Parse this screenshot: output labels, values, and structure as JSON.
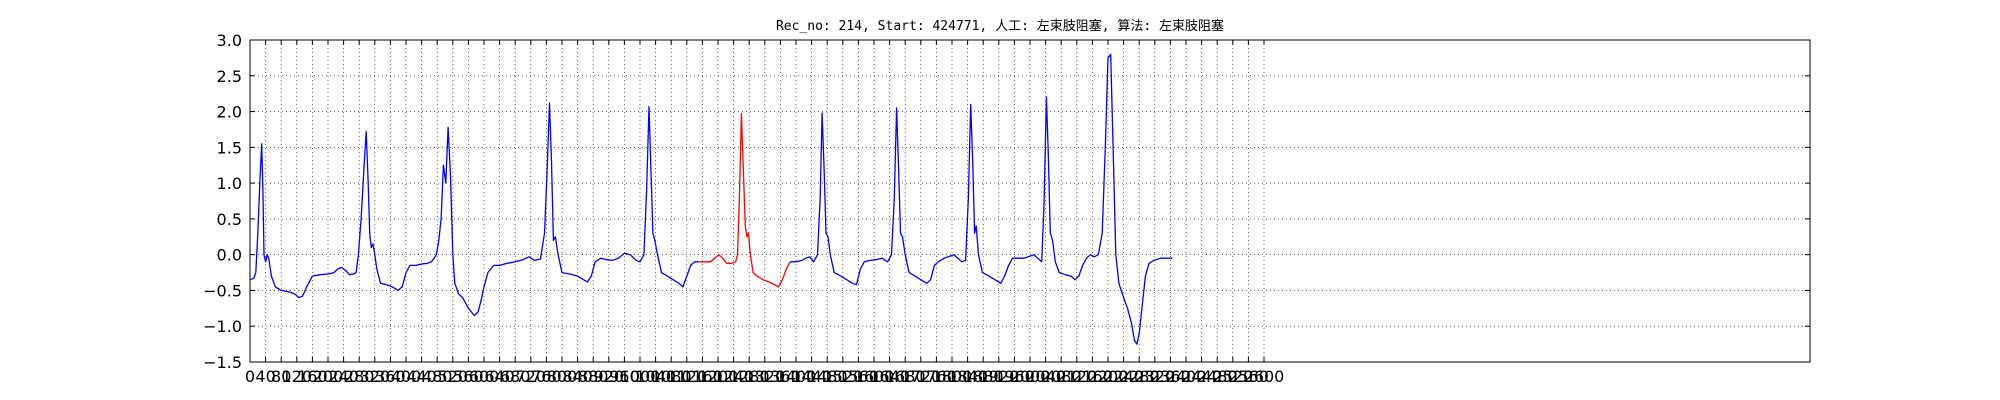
{
  "chart_data": {
    "type": "line",
    "title": "Rec_no: 214, Start: 424771, 人工: 左束肢阻塞, 算法: 左束肢阻塞",
    "xlabel": "",
    "ylabel": "",
    "xlim": [
      0,
      4000
    ],
    "ylim": [
      -1.5,
      3.0
    ],
    "grid": true,
    "grid_style": "dotted",
    "x_ticks": [
      0,
      40,
      80,
      120,
      160,
      200,
      240,
      280,
      320,
      360,
      400,
      440,
      480,
      520,
      560,
      600,
      640,
      680,
      720,
      760,
      800,
      840,
      880,
      920,
      960,
      1000,
      1040,
      1080,
      1120,
      1160,
      1200,
      1240,
      1280,
      1320,
      1360,
      1400,
      1440,
      1480,
      1520,
      1560,
      1600,
      1640,
      1680,
      1720,
      1760,
      1800,
      1840,
      1880,
      1920,
      1960,
      2000,
      2040,
      2080,
      2120,
      2160,
      2200,
      2240,
      2280,
      2320,
      2360,
      2400,
      2440,
      2480,
      2520,
      2560,
      2600
    ],
    "x_tick_labels": [
      "0",
      "40",
      "80",
      "120",
      "160",
      "200",
      "240",
      "280",
      "320",
      "360",
      "400",
      "440",
      "480",
      "520",
      "560",
      "600",
      "640",
      "680",
      "720",
      "760",
      "800",
      "840",
      "880",
      "920",
      "960",
      "1000",
      "1040",
      "1080",
      "1120",
      "1160",
      "1200",
      "1240",
      "1280",
      "1320",
      "1360",
      "1400",
      "1440",
      "1480",
      "1520",
      "1560",
      "1600",
      "1640",
      "1680",
      "1720",
      "1760",
      "1800",
      "1840",
      "1880",
      "1920",
      "1960",
      "2000",
      "2040",
      "2080",
      "2120",
      "2160",
      "2200",
      "2240",
      "2280",
      "2320",
      "2360",
      "2400",
      "2440",
      "2480",
      "2520",
      "2560",
      "2600"
    ],
    "y_ticks": [
      -1.5,
      -1.0,
      -0.5,
      0.0,
      0.5,
      1.0,
      1.5,
      2.0,
      2.5,
      3.0
    ],
    "y_tick_labels": [
      "−1.5",
      "−1.0",
      "−0.5",
      "0.0",
      "0.5",
      "1.0",
      "1.5",
      "2.0",
      "2.5",
      "3.0"
    ],
    "series": [
      {
        "color": "#0000ff",
        "points": [
          [
            0,
            -0.35
          ],
          [
            10,
            -0.33
          ],
          [
            15,
            -0.25
          ],
          [
            20,
            0.3
          ],
          [
            25,
            1.0
          ],
          [
            30,
            1.55
          ],
          [
            33,
            0.9
          ],
          [
            36,
            0.0
          ],
          [
            40,
            -0.1
          ],
          [
            44,
            0.0
          ],
          [
            48,
            -0.05
          ],
          [
            55,
            -0.3
          ],
          [
            65,
            -0.45
          ],
          [
            80,
            -0.5
          ],
          [
            100,
            -0.52
          ],
          [
            115,
            -0.55
          ],
          [
            125,
            -0.6
          ],
          [
            135,
            -0.58
          ],
          [
            145,
            -0.45
          ],
          [
            160,
            -0.3
          ],
          [
            180,
            -0.28
          ],
          [
            200,
            -0.27
          ],
          [
            215,
            -0.25
          ],
          [
            225,
            -0.2
          ],
          [
            235,
            -0.18
          ],
          [
            245,
            -0.22
          ],
          [
            255,
            -0.28
          ],
          [
            265,
            -0.27
          ],
          [
            272,
            -0.25
          ],
          [
            278,
            0.0
          ],
          [
            285,
            0.5
          ],
          [
            292,
            1.2
          ],
          [
            298,
            1.72
          ],
          [
            303,
            1.0
          ],
          [
            307,
            0.3
          ],
          [
            311,
            0.1
          ],
          [
            315,
            0.15
          ],
          [
            320,
            0.0
          ],
          [
            325,
            -0.2
          ],
          [
            335,
            -0.4
          ],
          [
            350,
            -0.42
          ],
          [
            365,
            -0.45
          ],
          [
            380,
            -0.5
          ],
          [
            390,
            -0.45
          ],
          [
            400,
            -0.25
          ],
          [
            410,
            -0.15
          ],
          [
            425,
            -0.15
          ],
          [
            440,
            -0.13
          ],
          [
            455,
            -0.12
          ],
          [
            465,
            -0.1
          ],
          [
            472,
            -0.05
          ],
          [
            478,
            0.0
          ],
          [
            484,
            0.2
          ],
          [
            490,
            0.5
          ],
          [
            496,
            1.25
          ],
          [
            502,
            1.0
          ],
          [
            508,
            1.78
          ],
          [
            514,
            1.1
          ],
          [
            520,
            0.0
          ],
          [
            525,
            -0.4
          ],
          [
            535,
            -0.55
          ],
          [
            545,
            -0.6
          ],
          [
            560,
            -0.75
          ],
          [
            575,
            -0.85
          ],
          [
            585,
            -0.8
          ],
          [
            592,
            -0.65
          ],
          [
            600,
            -0.45
          ],
          [
            610,
            -0.25
          ],
          [
            625,
            -0.15
          ],
          [
            640,
            -0.15
          ],
          [
            660,
            -0.12
          ],
          [
            680,
            -0.1
          ],
          [
            700,
            -0.07
          ],
          [
            715,
            -0.03
          ],
          [
            730,
            -0.08
          ],
          [
            745,
            -0.06
          ],
          [
            755,
            0.3
          ],
          [
            762,
            1.2
          ],
          [
            768,
            2.12
          ],
          [
            773,
            1.3
          ],
          [
            778,
            0.2
          ],
          [
            783,
            0.25
          ],
          [
            790,
            0.0
          ],
          [
            800,
            -0.25
          ],
          [
            820,
            -0.27
          ],
          [
            840,
            -0.3
          ],
          [
            855,
            -0.35
          ],
          [
            865,
            -0.38
          ],
          [
            875,
            -0.3
          ],
          [
            885,
            -0.1
          ],
          [
            900,
            -0.05
          ],
          [
            915,
            -0.07
          ],
          [
            930,
            -0.08
          ],
          [
            945,
            -0.05
          ],
          [
            960,
            0.02
          ],
          [
            975,
            0.0
          ],
          [
            990,
            -0.08
          ],
          [
            1000,
            -0.1
          ],
          [
            1010,
            0.0
          ],
          [
            1017,
            0.9
          ],
          [
            1023,
            2.07
          ],
          [
            1028,
            1.2
          ],
          [
            1033,
            0.3
          ],
          [
            1038,
            0.2
          ],
          [
            1045,
            0.0
          ],
          [
            1055,
            -0.25
          ],
          [
            1070,
            -0.3
          ],
          [
            1085,
            -0.35
          ],
          [
            1100,
            -0.4
          ],
          [
            1110,
            -0.45
          ],
          [
            1120,
            -0.3
          ],
          [
            1130,
            -0.15
          ],
          [
            1140,
            -0.1
          ],
          [
            1150,
            -0.1
          ]
        ]
      },
      {
        "color": "#ff0000",
        "points": [
          [
            1150,
            -0.1
          ],
          [
            1165,
            -0.1
          ],
          [
            1180,
            -0.1
          ],
          [
            1192,
            -0.05
          ],
          [
            1202,
            0.0
          ],
          [
            1212,
            -0.05
          ],
          [
            1222,
            -0.12
          ],
          [
            1235,
            -0.12
          ],
          [
            1245,
            -0.1
          ],
          [
            1250,
            0.0
          ],
          [
            1255,
            0.8
          ],
          [
            1260,
            1.97
          ],
          [
            1265,
            1.2
          ],
          [
            1270,
            0.4
          ],
          [
            1274,
            0.25
          ],
          [
            1278,
            0.3
          ],
          [
            1283,
            0.0
          ],
          [
            1290,
            -0.25
          ],
          [
            1300,
            -0.3
          ],
          [
            1315,
            -0.35
          ],
          [
            1330,
            -0.38
          ],
          [
            1345,
            -0.42
          ],
          [
            1355,
            -0.45
          ],
          [
            1365,
            -0.35
          ],
          [
            1375,
            -0.2
          ],
          [
            1385,
            -0.1
          ]
        ]
      },
      {
        "color": "#0000ff",
        "points": [
          [
            1385,
            -0.1
          ],
          [
            1400,
            -0.1
          ],
          [
            1415,
            -0.08
          ],
          [
            1425,
            -0.05
          ],
          [
            1435,
            -0.03
          ],
          [
            1445,
            -0.1
          ],
          [
            1455,
            0.0
          ],
          [
            1462,
            0.8
          ],
          [
            1467,
            1.98
          ],
          [
            1472,
            1.2
          ],
          [
            1477,
            0.3
          ],
          [
            1482,
            0.25
          ],
          [
            1488,
            0.0
          ],
          [
            1498,
            -0.25
          ],
          [
            1515,
            -0.3
          ],
          [
            1530,
            -0.35
          ],
          [
            1545,
            -0.4
          ],
          [
            1555,
            -0.42
          ],
          [
            1565,
            -0.2
          ],
          [
            1575,
            -0.1
          ],
          [
            1590,
            -0.08
          ],
          [
            1605,
            -0.07
          ],
          [
            1620,
            -0.05
          ],
          [
            1635,
            -0.1
          ],
          [
            1645,
            0.0
          ],
          [
            1652,
            0.8
          ],
          [
            1658,
            2.05
          ],
          [
            1663,
            1.2
          ],
          [
            1668,
            0.3
          ],
          [
            1673,
            0.25
          ],
          [
            1680,
            0.0
          ],
          [
            1690,
            -0.25
          ],
          [
            1705,
            -0.3
          ],
          [
            1720,
            -0.35
          ],
          [
            1735,
            -0.4
          ],
          [
            1745,
            -0.35
          ],
          [
            1755,
            -0.15
          ],
          [
            1765,
            -0.1
          ],
          [
            1780,
            -0.05
          ],
          [
            1795,
            -0.02
          ],
          [
            1805,
            0.0
          ],
          [
            1815,
            -0.05
          ],
          [
            1825,
            -0.1
          ],
          [
            1835,
            -0.08
          ],
          [
            1842,
            0.8
          ],
          [
            1848,
            2.1
          ],
          [
            1853,
            1.3
          ],
          [
            1858,
            0.3
          ],
          [
            1862,
            0.4
          ],
          [
            1868,
            0.0
          ],
          [
            1878,
            -0.25
          ],
          [
            1895,
            -0.3
          ],
          [
            1910,
            -0.35
          ],
          [
            1925,
            -0.4
          ],
          [
            1935,
            -0.3
          ],
          [
            1945,
            -0.15
          ],
          [
            1955,
            -0.05
          ],
          [
            1970,
            -0.05
          ],
          [
            1985,
            -0.05
          ],
          [
            2000,
            -0.02
          ],
          [
            2010,
            0.0
          ],
          [
            2020,
            -0.05
          ],
          [
            2030,
            -0.1
          ],
          [
            2036,
            0.7
          ],
          [
            2042,
            2.2
          ],
          [
            2047,
            1.4
          ],
          [
            2052,
            0.3
          ],
          [
            2058,
            0.2
          ],
          [
            2065,
            -0.1
          ],
          [
            2075,
            -0.25
          ],
          [
            2090,
            -0.28
          ],
          [
            2105,
            -0.3
          ],
          [
            2115,
            -0.35
          ],
          [
            2125,
            -0.3
          ],
          [
            2135,
            -0.15
          ],
          [
            2145,
            -0.05
          ],
          [
            2155,
            0.0
          ],
          [
            2165,
            -0.03
          ],
          [
            2175,
            0.0
          ],
          [
            2185,
            0.3
          ],
          [
            2193,
            1.5
          ],
          [
            2200,
            2.75
          ],
          [
            2207,
            2.8
          ],
          [
            2213,
            1.5
          ],
          [
            2220,
            0.0
          ],
          [
            2228,
            -0.4
          ],
          [
            2240,
            -0.6
          ],
          [
            2250,
            -0.75
          ],
          [
            2260,
            -0.95
          ],
          [
            2268,
            -1.2
          ],
          [
            2274,
            -1.25
          ],
          [
            2280,
            -1.1
          ],
          [
            2288,
            -0.7
          ],
          [
            2296,
            -0.3
          ],
          [
            2305,
            -0.12
          ],
          [
            2318,
            -0.08
          ],
          [
            2335,
            -0.05
          ],
          [
            2350,
            -0.05
          ],
          [
            2365,
            -0.05
          ]
        ]
      }
    ]
  }
}
